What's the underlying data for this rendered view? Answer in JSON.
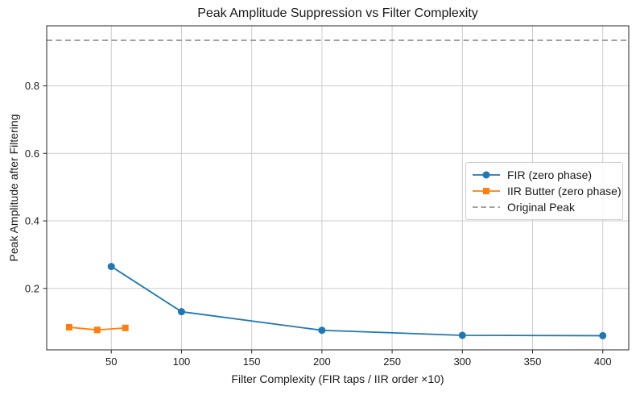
{
  "chart_data": {
    "type": "line",
    "title": "Peak Amplitude Suppression vs Filter Complexity",
    "xlabel": "Filter Complexity (FIR taps / IIR order ×10)",
    "ylabel": "Peak Amplitude after Filtering",
    "xlim": [
      4,
      418.5
    ],
    "ylim": [
      0.018,
      0.978
    ],
    "xticks": [
      50,
      100,
      150,
      200,
      250,
      300,
      350,
      400
    ],
    "yticks": [
      0.2,
      0.4,
      0.6,
      0.8
    ],
    "grid": true,
    "legend_position": "center right",
    "colors": {
      "fir": "#1f77b4",
      "iir": "#ff7f0e",
      "reference": "#808080",
      "grid": "#cdcdcd",
      "spine": "#262626"
    },
    "series": [
      {
        "name": "FIR (zero phase)",
        "color": "#1f77b4",
        "marker": "circle",
        "linestyle": "solid",
        "x": [
          50,
          100,
          200,
          300,
          400
        ],
        "y": [
          0.265,
          0.131,
          0.076,
          0.061,
          0.06
        ]
      },
      {
        "name": "IIR Butter (zero phase)",
        "color": "#ff7f0e",
        "marker": "square",
        "linestyle": "solid",
        "x": [
          20,
          40,
          60
        ],
        "y": [
          0.085,
          0.077,
          0.083
        ]
      },
      {
        "name": "Original Peak",
        "color": "#808080",
        "marker": "none",
        "linestyle": "dashed",
        "y_const": 0.935
      }
    ]
  }
}
